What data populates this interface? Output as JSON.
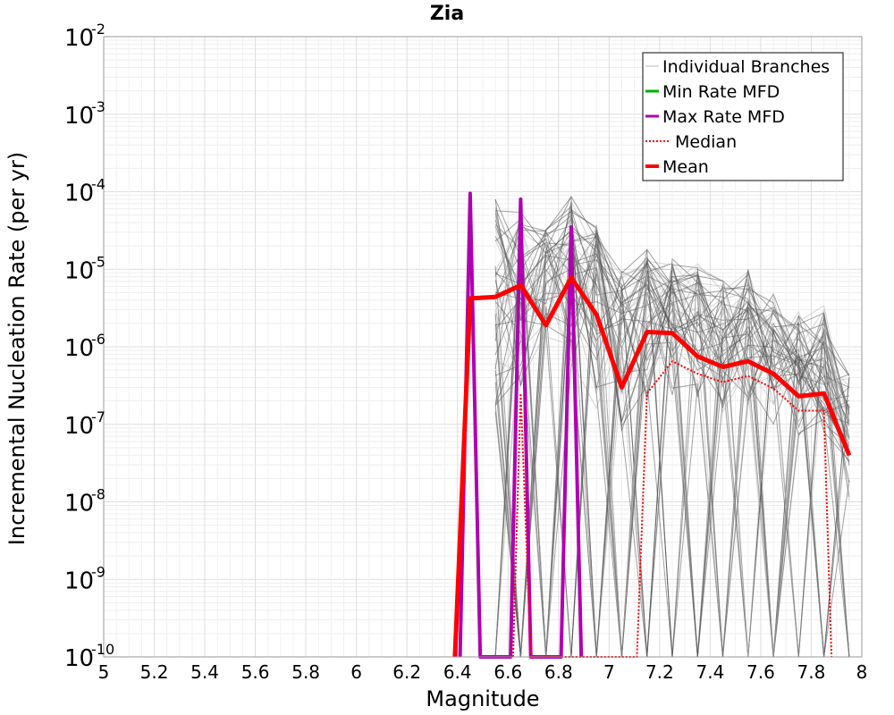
{
  "chart_data": {
    "type": "line",
    "title": "Zia",
    "xlabel": "Magnitude",
    "ylabel": "Incremental Nucleation Rate (per yr)",
    "xlim": [
      5,
      8
    ],
    "ylim": [
      1e-10,
      0.01
    ],
    "yscale": "log",
    "x_ticks": [
      "5",
      "5.2",
      "5.4",
      "5.6",
      "5.8",
      "6",
      "6.2",
      "6.4",
      "6.6",
      "6.8",
      "7",
      "7.2",
      "7.4",
      "7.6",
      "7.8",
      "8"
    ],
    "y_ticks": [
      {
        "base": "10",
        "exp": "-10"
      },
      {
        "base": "10",
        "exp": "-9"
      },
      {
        "base": "10",
        "exp": "-8"
      },
      {
        "base": "10",
        "exp": "-7"
      },
      {
        "base": "10",
        "exp": "-6"
      },
      {
        "base": "10",
        "exp": "-5"
      },
      {
        "base": "10",
        "exp": "-4"
      },
      {
        "base": "10",
        "exp": "-3"
      },
      {
        "base": "10",
        "exp": "-2"
      }
    ],
    "grid": true,
    "legend_position": "top-right",
    "legend": [
      "Individual Branches",
      "Min Rate MFD",
      "Max Rate MFD",
      "Median",
      "Mean"
    ],
    "colors": {
      "branches": "#555555",
      "branches_light": "#bbbbbb",
      "min": "#00b000",
      "max": "#b000b0",
      "median": "#ff0000",
      "mean": "#ff0000"
    },
    "series": [
      {
        "name": "Mean",
        "x": [
          6.39,
          6.45,
          6.55,
          6.65,
          6.75,
          6.85,
          6.95,
          7.05,
          7.15,
          7.25,
          7.35,
          7.45,
          7.55,
          7.65,
          7.75,
          7.85,
          7.95
        ],
        "y": [
          1e-10,
          4.2e-06,
          4.4e-06,
          6.2e-06,
          1.9e-06,
          7.8e-06,
          2.6e-06,
          3e-07,
          1.55e-06,
          1.5e-06,
          7.5e-07,
          5.5e-07,
          6.5e-07,
          4.5e-07,
          2.3e-07,
          2.5e-07,
          4e-08
        ]
      },
      {
        "name": "Median",
        "x": [
          6.62,
          6.65,
          6.69,
          7.11,
          7.15,
          7.25,
          7.35,
          7.45,
          7.55,
          7.65,
          7.75,
          7.85,
          7.88
        ],
        "y": [
          1e-10,
          2.5e-07,
          1e-10,
          1e-10,
          2.5e-07,
          6.5e-07,
          4.5e-07,
          3.5e-07,
          4.2e-07,
          2.9e-07,
          1.5e-07,
          1.5e-07,
          1e-10
        ]
      },
      {
        "name": "Max Rate MFD",
        "x": [
          6.41,
          6.45,
          6.49,
          6.61,
          6.65,
          6.69,
          6.81,
          6.85,
          6.89
        ],
        "y": [
          1e-10,
          9.5e-05,
          1e-10,
          1e-10,
          8e-05,
          1e-10,
          1e-10,
          3.5e-05,
          1e-10
        ]
      },
      {
        "name": "Min Rate MFD",
        "x": [],
        "y": []
      }
    ],
    "branch_envelope": {
      "x": [
        6.55,
        6.65,
        6.75,
        6.85,
        6.95,
        7.05,
        7.15,
        7.25,
        7.35,
        7.45,
        7.55,
        7.65,
        7.75,
        7.85,
        7.95
      ],
      "y_high": [
        9e-05,
        9e-05,
        4e-05,
        0.0001,
        4e-05,
        1e-05,
        1.8e-05,
        1.5e-05,
        1.2e-05,
        8e-06,
        1e-05,
        5e-06,
        3e-06,
        3.5e-06,
        4.5e-07
      ],
      "y_low": [
        1e-07,
        1e-07,
        8e-07,
        5e-07,
        1.5e-07,
        8e-08,
        2e-07,
        2e-07,
        1.5e-07,
        1.2e-07,
        1.3e-07,
        8e-08,
        4e-08,
        5e-08,
        1e-08
      ]
    }
  }
}
